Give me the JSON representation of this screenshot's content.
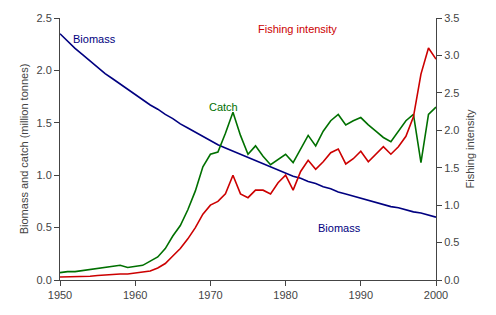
{
  "chart_data": {
    "type": "line",
    "ylabel": "Biomass and catch (million tonnes)",
    "y2label": "Fishing intensity",
    "x": [
      1950,
      1951,
      1952,
      1953,
      1954,
      1955,
      1956,
      1957,
      1958,
      1959,
      1960,
      1961,
      1962,
      1963,
      1964,
      1965,
      1966,
      1967,
      1968,
      1969,
      1970,
      1971,
      1972,
      1973,
      1974,
      1975,
      1976,
      1977,
      1978,
      1979,
      1980,
      1981,
      1982,
      1983,
      1984,
      1985,
      1986,
      1987,
      1988,
      1989,
      1990,
      1991,
      1992,
      1993,
      1994,
      1995,
      1996,
      1997,
      1998,
      1999,
      2000
    ],
    "series": [
      {
        "color": "#000080",
        "values": [
          2.35,
          2.28,
          2.21,
          2.15,
          2.09,
          2.03,
          1.97,
          1.92,
          1.87,
          1.82,
          1.77,
          1.72,
          1.67,
          1.63,
          1.58,
          1.54,
          1.49,
          1.45,
          1.41,
          1.37,
          1.33,
          1.29,
          1.26,
          1.23,
          1.2,
          1.17,
          1.14,
          1.11,
          1.08,
          1.05,
          1.02,
          0.99,
          0.97,
          0.94,
          0.92,
          0.89,
          0.87,
          0.84,
          0.82,
          0.8,
          0.78,
          0.76,
          0.74,
          0.72,
          0.7,
          0.69,
          0.67,
          0.65,
          0.64,
          0.62,
          0.6
        ]
      },
      {
        "color": "#007000",
        "values": [
          0.07,
          0.08,
          0.08,
          0.09,
          0.1,
          0.11,
          0.12,
          0.13,
          0.14,
          0.12,
          0.13,
          0.14,
          0.18,
          0.22,
          0.3,
          0.42,
          0.52,
          0.67,
          0.85,
          1.08,
          1.2,
          1.22,
          1.4,
          1.6,
          1.38,
          1.2,
          1.28,
          1.18,
          1.1,
          1.15,
          1.2,
          1.12,
          1.25,
          1.38,
          1.28,
          1.42,
          1.52,
          1.58,
          1.48,
          1.52,
          1.55,
          1.48,
          1.42,
          1.36,
          1.32,
          1.42,
          1.52,
          1.58,
          1.12,
          1.58,
          1.65
        ]
      },
      {
        "color": "#CC0000",
        "axis": "y2",
        "values": [
          0.04,
          0.04,
          0.04,
          0.05,
          0.05,
          0.06,
          0.07,
          0.07,
          0.08,
          0.08,
          0.09,
          0.1,
          0.12,
          0.16,
          0.22,
          0.32,
          0.42,
          0.55,
          0.7,
          0.88,
          1.0,
          1.05,
          1.15,
          1.4,
          1.15,
          1.1,
          1.2,
          1.2,
          1.15,
          1.3,
          1.4,
          1.2,
          1.45,
          1.6,
          1.48,
          1.58,
          1.7,
          1.75,
          1.55,
          1.62,
          1.72,
          1.58,
          1.68,
          1.78,
          1.68,
          1.78,
          1.92,
          2.18,
          2.75,
          3.1,
          2.95
        ]
      }
    ],
    "xlim": [
      1950,
      2000
    ],
    "xticks": [
      1950,
      1960,
      1970,
      1980,
      1990,
      2000
    ],
    "ylim": [
      0,
      2.5
    ],
    "yticks": [
      {
        "value": 0.0,
        "label": "0.0"
      },
      0.5,
      {
        "value": 1.0,
        "label": "1.0"
      },
      1.5,
      {
        "value": 2.0,
        "label": "2.0"
      },
      2.5
    ],
    "y2lim": [
      0.0,
      3.5
    ],
    "y2ticks": [
      {
        "value": 0.0,
        "label": "0.0"
      },
      0.5,
      {
        "value": 1.0,
        "label": "1.0"
      },
      1.5,
      {
        "value": 2.0,
        "label": "2.0"
      },
      2.5,
      {
        "value": 3.0,
        "label": "3.0"
      },
      3.5
    ],
    "annotations": [
      {
        "text": "Biomass",
        "x": 1951.5,
        "y": 2.22,
        "color": "#000080"
      },
      {
        "text": "Catch",
        "x": 1969.5,
        "y": 1.57,
        "color": "#007000"
      },
      {
        "text": "Biomass",
        "x": 1984,
        "y": 0.42,
        "color": "#000080"
      },
      {
        "text": "Fishing intensity",
        "x": 1976,
        "y": 2.32,
        "color": "#CC0000"
      }
    ],
    "grid": false
  }
}
